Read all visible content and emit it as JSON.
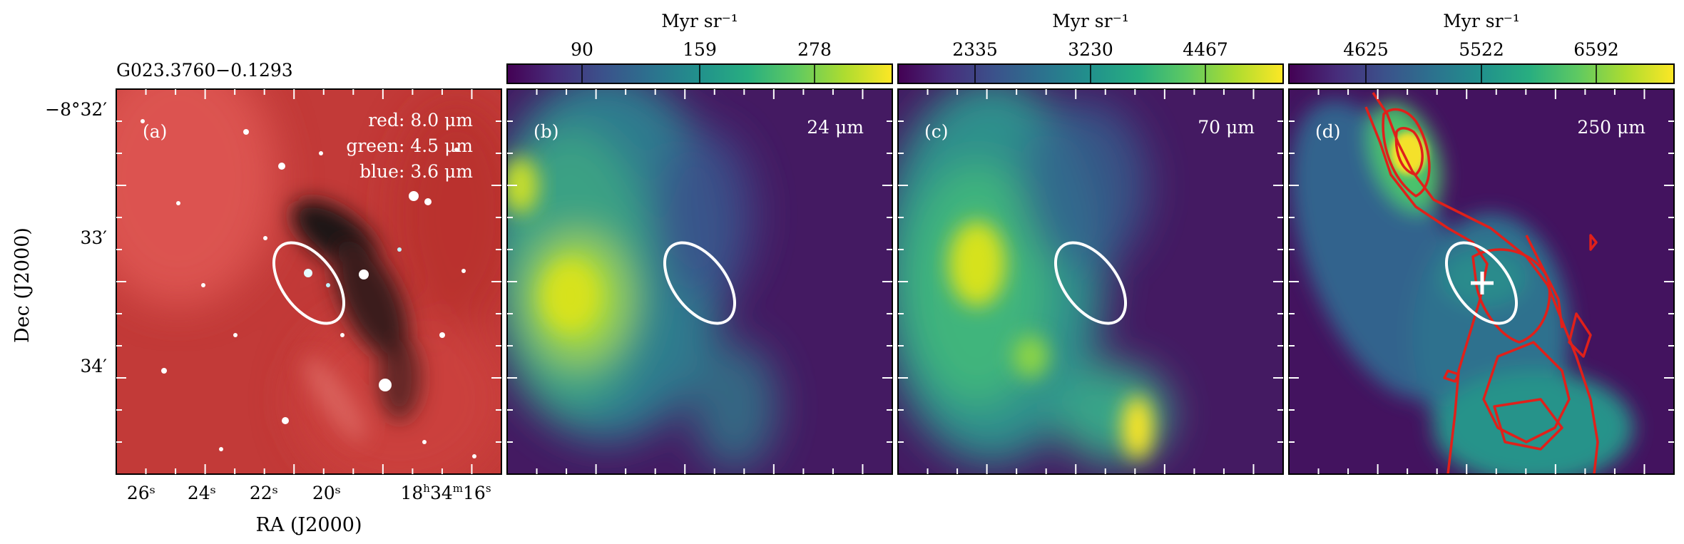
{
  "figure": {
    "source_name": "G023.3760−0.1293",
    "y_axis_label": "Dec (J2000)",
    "x_axis_label": "RA (J2000)",
    "dec_ticks": [
      "−8°32′",
      "33′",
      "34′"
    ],
    "ra_ticks": [
      "26ˢ",
      "24ˢ",
      "22ˢ",
      "20ˢ",
      "18ʰ34ᵐ¹⁶ˢ"
    ],
    "ra_tick_text": {
      "h": "18",
      "hs": "h",
      "m": "34",
      "ms": "m",
      "s": "16",
      "ss": "s"
    }
  },
  "panels": [
    {
      "id": "a",
      "tag": "(a)",
      "legend": [
        "red: 8.0 μm",
        "green: 4.5 μm",
        "blue: 3.6 μm"
      ]
    },
    {
      "id": "b",
      "tag": "(b)",
      "band": "24 μm",
      "colorbar_unit": "Myr sr⁻¹",
      "colorbar_ticks": [
        "90",
        "159",
        "278"
      ]
    },
    {
      "id": "c",
      "tag": "(c)",
      "band": "70 μm",
      "colorbar_unit": "Myr sr⁻¹",
      "colorbar_ticks": [
        "2335",
        "3230",
        "4467"
      ]
    },
    {
      "id": "d",
      "tag": "(d)",
      "band": "250 μm",
      "colorbar_unit": "Myr sr⁻¹",
      "colorbar_ticks": [
        "4625",
        "5522",
        "6592"
      ]
    }
  ],
  "colors": {
    "viridis": [
      "#440154",
      "#472d7b",
      "#3b528b",
      "#2c728e",
      "#21918c",
      "#28ae80",
      "#5ec962",
      "#addc30",
      "#fde725"
    ],
    "contour": "#e0201a",
    "ellipse": "#ffffff",
    "rgb_base": "#c23a38"
  }
}
